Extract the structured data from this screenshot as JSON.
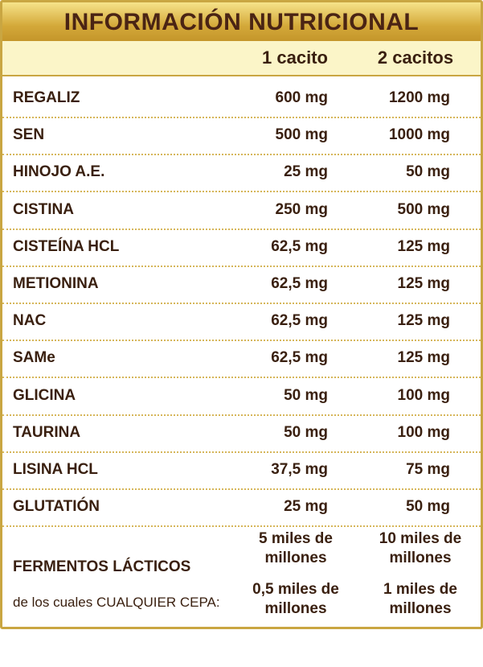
{
  "header": {
    "title": "INFORMACIÓN NUTRICIONAL"
  },
  "table": {
    "columns": [
      "1 cacito",
      "2 cacitos"
    ],
    "rows": [
      [
        "REGALIZ",
        "600 mg",
        "1200 mg"
      ],
      [
        "SEN",
        "500 mg",
        "1000 mg"
      ],
      [
        "HINOJO A.E.",
        "25 mg",
        "50 mg"
      ],
      [
        "CISTINA",
        "250 mg",
        "500 mg"
      ],
      [
        "CISTEÍNA HCL",
        "62,5 mg",
        "125 mg"
      ],
      [
        "METIONINA",
        "62,5 mg",
        "125 mg"
      ],
      [
        "NAC",
        "62,5 mg",
        "125 mg"
      ],
      [
        "SAMe",
        "62,5 mg",
        "125 mg"
      ],
      [
        "GLICINA",
        "50 mg",
        "100 mg"
      ],
      [
        "TAURINA",
        "50 mg",
        "100 mg"
      ],
      [
        "LISINA HCL",
        "37,5 mg",
        "75 mg"
      ],
      [
        "GLUTATIÓN",
        "25 mg",
        "50 mg"
      ]
    ],
    "footer": {
      "name": "FERMENTOS LÁCTICOS",
      "note": "de los cuales CUALQUIER CEPA:",
      "total": [
        "5 miles de millones",
        "10 miles de millones"
      ],
      "strain": [
        "0,5 miles de millones",
        "1 miles de millones"
      ]
    }
  }
}
